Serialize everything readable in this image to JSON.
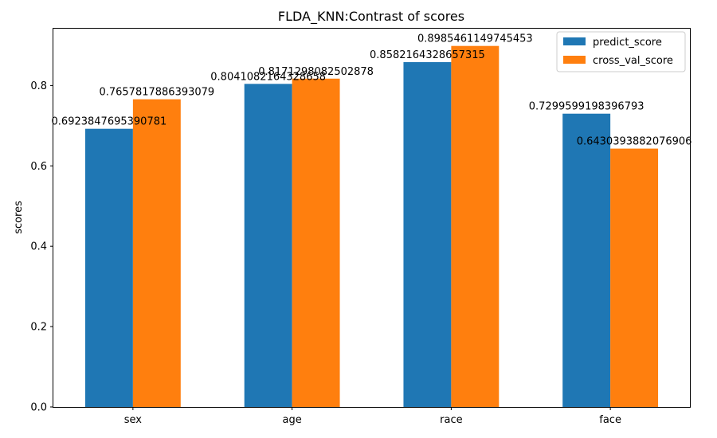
{
  "chart_data": {
    "type": "bar",
    "title": "FLDA_KNN:Contrast of scores",
    "xlabel": "",
    "ylabel": "scores",
    "categories": [
      "sex",
      "age",
      "race",
      "face"
    ],
    "series": [
      {
        "name": "predict_score",
        "color": "#1f77b4",
        "values": [
          0.6923847695390781,
          0.8041082164328658,
          0.8582164328657315,
          0.7299599198396793
        ],
        "labels": [
          "0.6923847695390781",
          "0.8041082164328658",
          "0.8582164328657315",
          "0.7299599198396793"
        ]
      },
      {
        "name": "cross_val_score",
        "color": "#ff7f0e",
        "values": [
          0.7657817886393079,
          0.8171298082502878,
          0.8985461149745453,
          0.6430393882076906
        ],
        "labels": [
          "0.7657817886393079",
          "0.8171298082502878",
          "0.8985461149745453",
          "0.6430393882076906"
        ]
      }
    ],
    "yticks": [
      "0.0",
      "0.2",
      "0.4",
      "0.6",
      "0.8"
    ],
    "ylim": [
      0,
      0.9435
    ],
    "grid": false,
    "legend_position": "top-right"
  }
}
